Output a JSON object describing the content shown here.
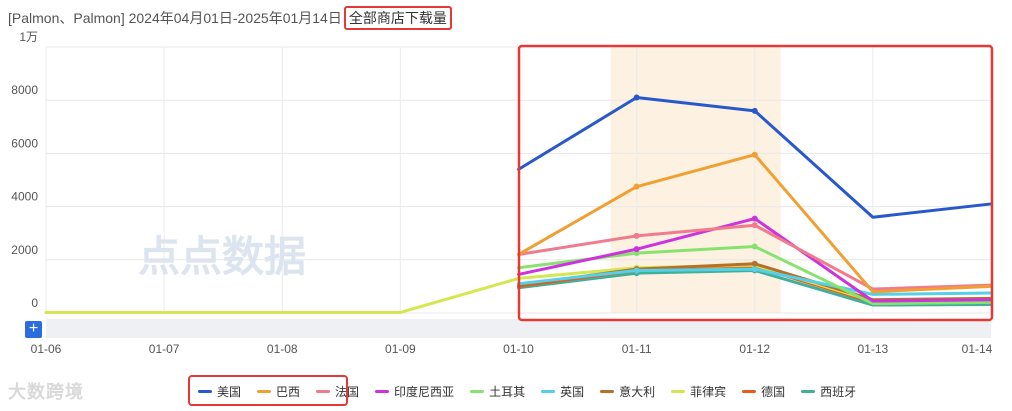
{
  "title": {
    "prefix": "[Palmon、Palmon] 2024年04月01日-2025年01月14日",
    "filter_label": "全部商店下载量"
  },
  "watermark": {
    "text": "点点数据"
  },
  "brand_logo": {
    "text": "大数跨境"
  },
  "zoom_button": {
    "label": "+"
  },
  "highlight_color": "#e53935",
  "chart_data": {
    "type": "line",
    "x": [
      "01-06",
      "01-07",
      "01-08",
      "01-09",
      "01-10",
      "01-11",
      "01-12",
      "01-13",
      "01-14"
    ],
    "ytick_labels": [
      "0",
      "2000",
      "4000",
      "6000",
      "8000",
      "1万"
    ],
    "ylim": [
      0,
      10000
    ],
    "grid": true,
    "legend_position": "bottom",
    "highlighted_x": "01-11 to 01-12",
    "series": [
      {
        "name": "美国",
        "color": "#2858cc",
        "values": [
          null,
          null,
          null,
          null,
          5400,
          8100,
          7600,
          3600,
          4100
        ]
      },
      {
        "name": "巴西",
        "color": "#f0a033",
        "values": [
          null,
          null,
          null,
          null,
          2200,
          4750,
          5950,
          800,
          1000
        ]
      },
      {
        "name": "法国",
        "color": "#f07b8c",
        "values": [
          null,
          null,
          null,
          null,
          2200,
          2900,
          3300,
          900,
          1050
        ]
      },
      {
        "name": "印度尼西亚",
        "color": "#cc33dd",
        "values": [
          null,
          null,
          null,
          null,
          1450,
          2400,
          3550,
          450,
          500
        ]
      },
      {
        "name": "土耳其",
        "color": "#88e270",
        "values": [
          null,
          null,
          null,
          null,
          1700,
          2250,
          2500,
          350,
          400
        ]
      },
      {
        "name": "英国",
        "color": "#55d0e8",
        "values": [
          null,
          null,
          null,
          null,
          1100,
          1600,
          1650,
          700,
          750
        ]
      },
      {
        "name": "意大利",
        "color": "#b5702a",
        "values": [
          null,
          null,
          null,
          null,
          1050,
          1650,
          1850,
          500,
          550
        ]
      },
      {
        "name": "菲律宾",
        "color": "#d4e650",
        "values": [
          20,
          20,
          20,
          20,
          1300,
          1700,
          1800,
          450,
          500
        ]
      },
      {
        "name": "德国",
        "color": "#e85a1e",
        "values": [
          null,
          null,
          null,
          null,
          1000,
          1600,
          1750,
          400,
          450
        ]
      },
      {
        "name": "西班牙",
        "color": "#40b09a",
        "values": [
          null,
          null,
          null,
          null,
          950,
          1500,
          1600,
          300,
          320
        ]
      }
    ]
  }
}
